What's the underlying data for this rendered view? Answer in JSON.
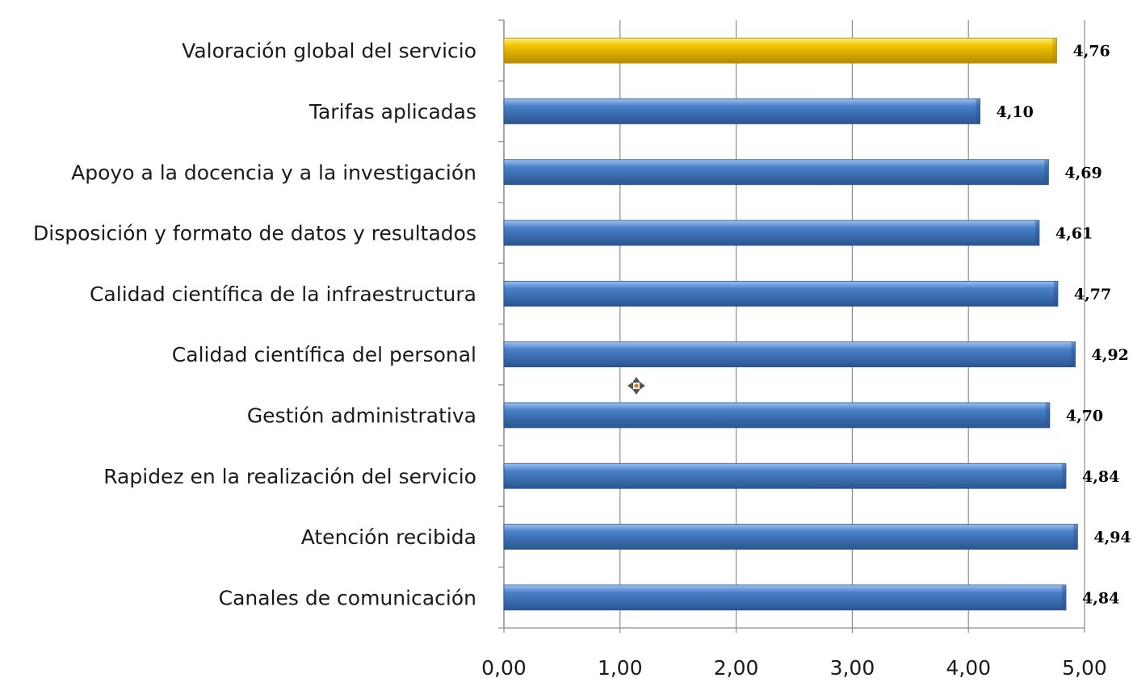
{
  "chart_data": {
    "type": "bar",
    "orientation": "horizontal",
    "categories": [
      "Valoración global del servicio",
      "Tarifas aplicadas",
      "Apoyo a la docencia y a la investigación",
      "Disposición y formato de datos y resultados",
      "Calidad científica de la infraestructura",
      "Calidad científica del personal",
      "Gestión administrativa",
      "Rapidez en la realización del servicio",
      "Atención recibida",
      "Canales de comunicación"
    ],
    "values": [
      4.76,
      4.1,
      4.69,
      4.61,
      4.77,
      4.92,
      4.7,
      4.84,
      4.94,
      4.84
    ],
    "value_labels": [
      "4,76",
      "4,10",
      "4,69",
      "4,61",
      "4,77",
      "4,92",
      "4,70",
      "4,84",
      "4,94",
      "4,84"
    ],
    "xlim": [
      0,
      5
    ],
    "x_ticks": [
      "0,00",
      "1,00",
      "2,00",
      "3,00",
      "4,00",
      "5,00"
    ],
    "grid": true,
    "highlight_index": 0,
    "colors": {
      "bar": "#4a7fc8",
      "bar_light": "#9cc2f0",
      "bar_dark": "#2a5590",
      "highlight": "#f2c400",
      "highlight_light": "#ffee80",
      "highlight_dark": "#b58a00",
      "grid": "#8c8c8c",
      "axis": "#8c8c8c"
    }
  }
}
